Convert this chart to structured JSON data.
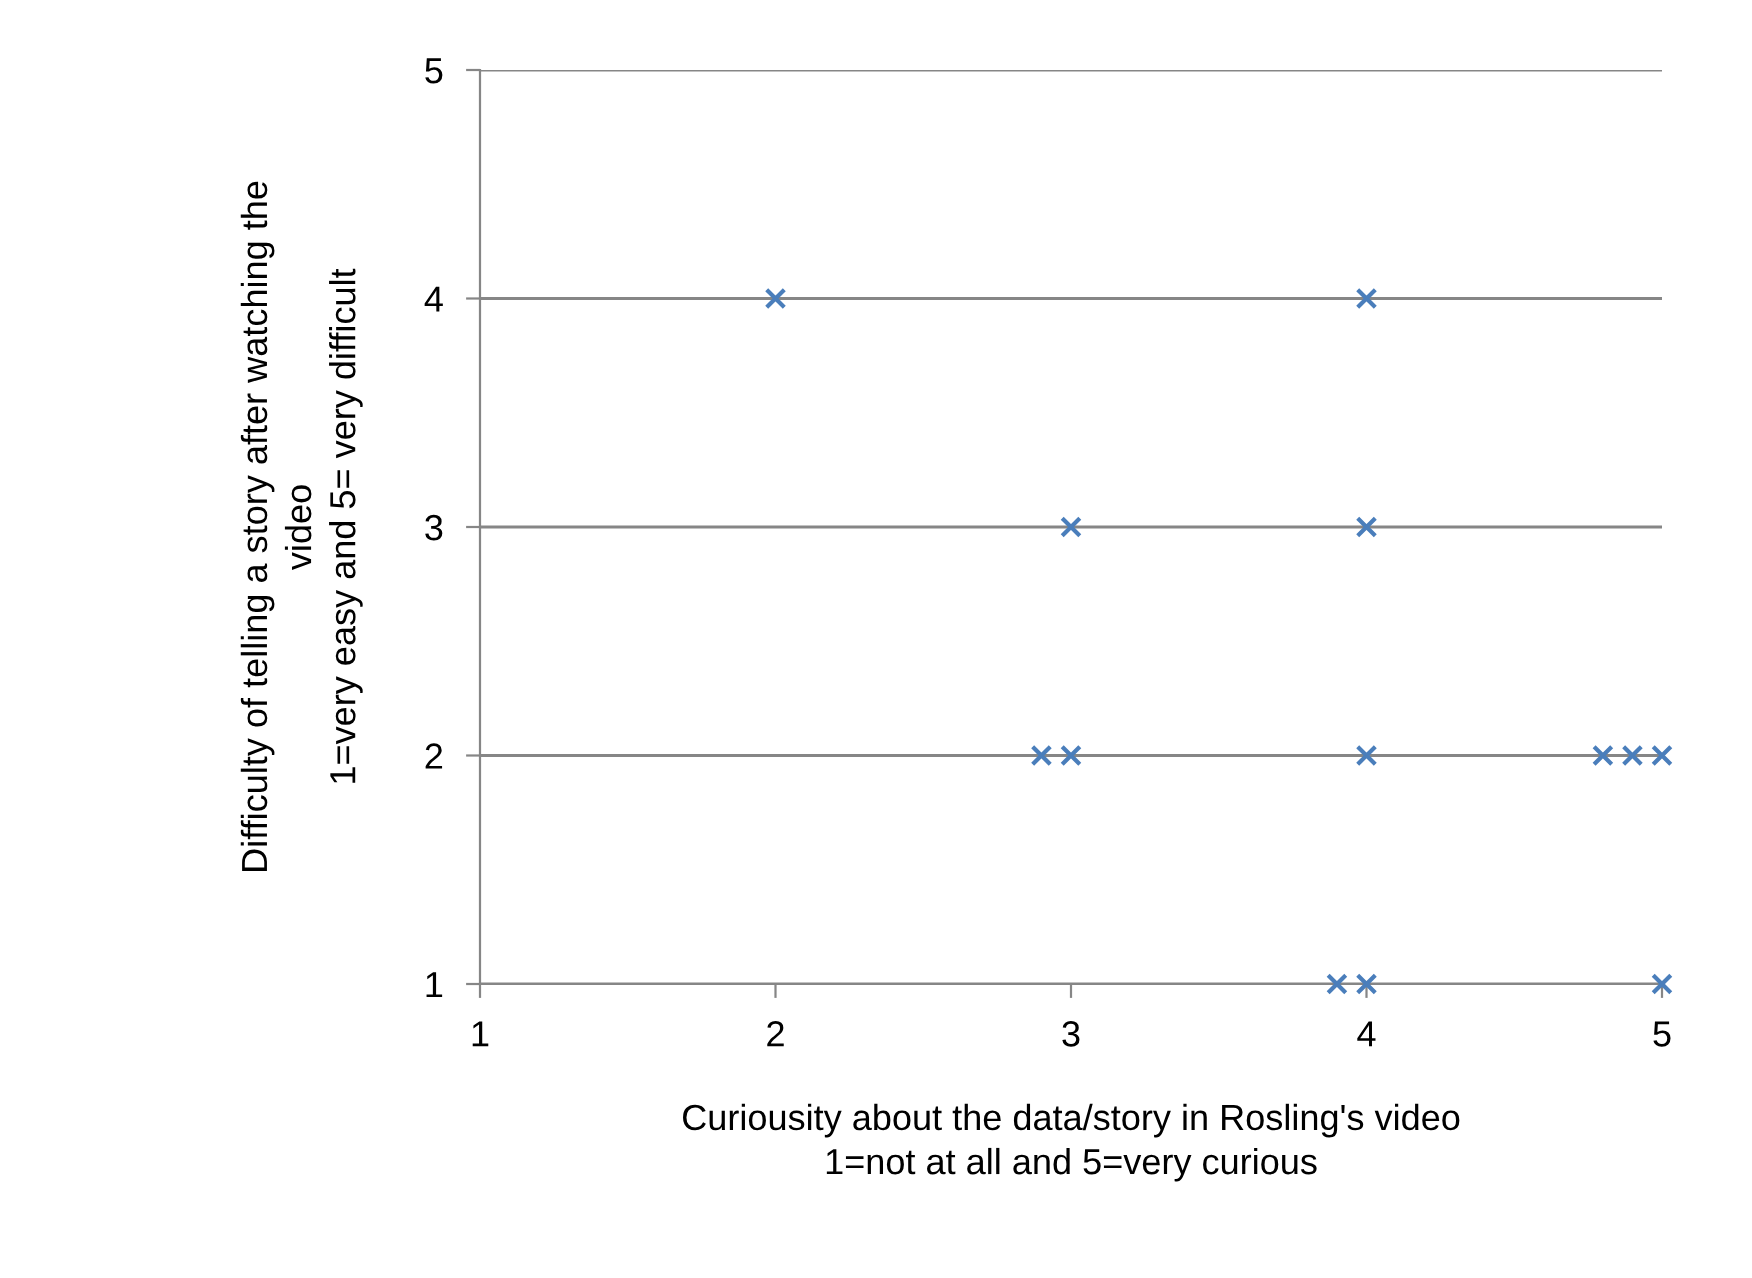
{
  "chart_data": {
    "type": "scatter",
    "xlabel": "Curiousity about the data/story in Rosling's video\n1=not at all and 5=very curious",
    "ylabel": "Difficulty of telling a story after watching the\nvideo\n1=very easy and 5= very difficult",
    "x": [
      2,
      4,
      3,
      4,
      2.9,
      3,
      4,
      4.8,
      4.9,
      5,
      3.9,
      4,
      5
    ],
    "series": [
      {
        "color": "#4a7ebb",
        "values": [
          4,
          4,
          3,
          3,
          2,
          2,
          2,
          2,
          2,
          2,
          1,
          1,
          1
        ]
      }
    ],
    "xlim": [
      1,
      5
    ],
    "ylim": [
      1,
      5
    ],
    "xticks": [
      1,
      2,
      3,
      4,
      5
    ],
    "yticks": [
      1,
      2,
      3,
      4,
      5
    ],
    "grid": "y",
    "marker": "cross",
    "legend": false
  }
}
